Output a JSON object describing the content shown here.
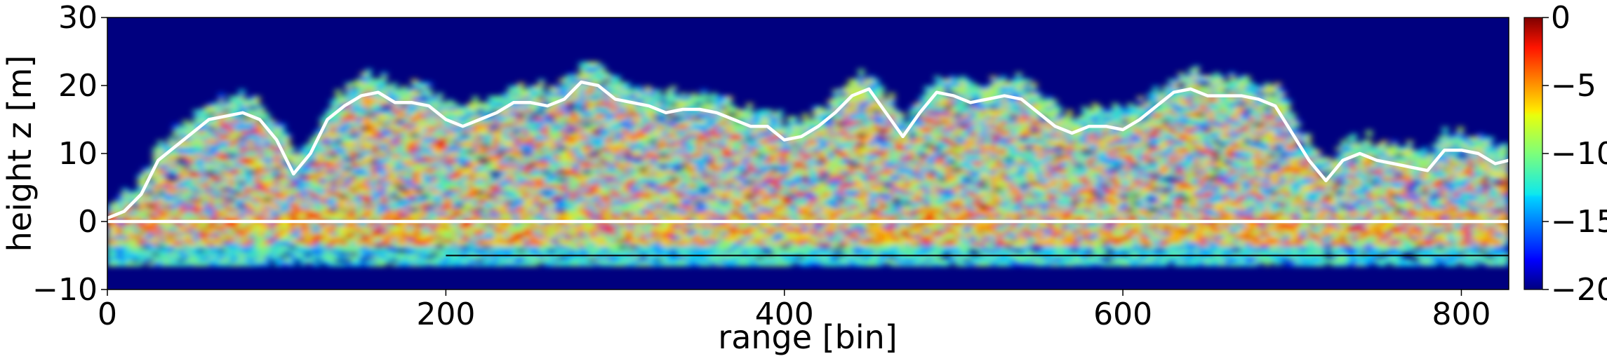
{
  "chart_data": {
    "type": "heatmap",
    "title": "",
    "xlabel": "range [bin]",
    "ylabel": "height z [m]",
    "xlim": [
      0,
      828
    ],
    "ylim": [
      -10,
      30
    ],
    "x_ticks": [
      "0",
      "200",
      "400",
      "600",
      "800"
    ],
    "y_ticks": [
      "30",
      "20",
      "10",
      "0",
      "−10"
    ],
    "colorbar": {
      "colormap": "jet",
      "range": [
        -20,
        0
      ],
      "ticks": [
        "0",
        "−5",
        "−10",
        "−15",
        "−20"
      ]
    },
    "series": [
      {
        "style": "white-line",
        "x": [
          0,
          10,
          20,
          30,
          40,
          50,
          60,
          70,
          80,
          90,
          100,
          110,
          120,
          130,
          140,
          150,
          160,
          170,
          180,
          190,
          200,
          210,
          220,
          230,
          240,
          250,
          260,
          270,
          280,
          290,
          300,
          310,
          320,
          330,
          340,
          350,
          360,
          370,
          380,
          390,
          400,
          410,
          420,
          430,
          440,
          450,
          460,
          470,
          480,
          490,
          500,
          510,
          520,
          530,
          540,
          550,
          560,
          570,
          580,
          590,
          600,
          610,
          620,
          630,
          640,
          650,
          660,
          670,
          680,
          690,
          700,
          710,
          720,
          730,
          740,
          750,
          760,
          770,
          780,
          790,
          800,
          810,
          820,
          828
        ],
        "y": [
          0.5,
          1.5,
          4,
          9,
          11,
          13,
          15,
          15.5,
          16,
          15,
          12,
          7,
          10,
          15,
          17,
          18.5,
          19,
          17.5,
          17.5,
          17,
          15,
          14,
          15,
          16,
          17.5,
          17.5,
          17,
          18,
          20.5,
          20,
          18,
          17.5,
          17,
          16,
          16.5,
          16.5,
          16,
          15,
          14,
          14,
          12,
          12.5,
          14,
          16,
          18.5,
          19.5,
          16,
          12.5,
          16,
          19,
          18.5,
          17.5,
          18,
          18.5,
          18,
          16,
          14,
          13,
          14,
          14,
          13.5,
          15,
          17,
          19,
          19.5,
          18.5,
          18.5,
          18.5,
          18,
          17,
          13,
          9,
          6,
          9,
          10,
          9,
          8.5,
          8,
          7.5,
          10.5,
          10.5,
          10,
          8.5,
          9
        ]
      },
      {
        "style": "white-line",
        "x": [
          0,
          828
        ],
        "y": [
          0,
          0
        ]
      },
      {
        "style": "black-line",
        "x": [
          200,
          828
        ],
        "y": [
          -5,
          -5
        ]
      }
    ]
  }
}
